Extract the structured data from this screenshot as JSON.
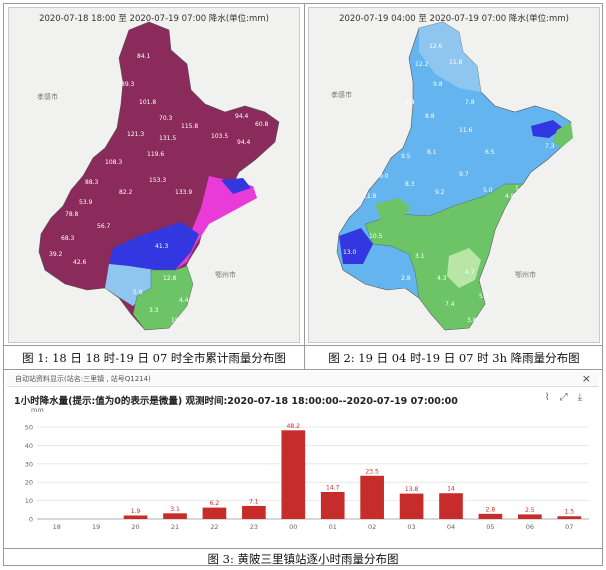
{
  "map1": {
    "header": "2020-07-18 18:00 至 2020-07-19 07:00 降水(单位:mm)",
    "city_label": "孝感市",
    "city_label2": "鄂州市",
    "labels": [
      "84.1",
      "89.3",
      "101.8",
      "70.3",
      "121.3",
      "115.8",
      "103.5",
      "94.4",
      "108.3",
      "119.6",
      "131.5",
      "88.3",
      "82.2",
      "153.3",
      "133.9",
      "78.8",
      "56.7",
      "41.3",
      "39.2",
      "42.6",
      "12.8",
      "5.6",
      "3.3",
      "4.4",
      "15.0",
      "94.4",
      "60.8",
      "68.3",
      "53.9"
    ]
  },
  "map2": {
    "header": "2020-07-19 04:00 至 2020-07-19 07:00 降水(单位:mm)",
    "city_label": "孝感市",
    "city_label2": "鄂州市",
    "labels": [
      "12.6",
      "12.2",
      "11.8",
      "9.8",
      "9.4",
      "7.8",
      "8.8",
      "11.6",
      "9.5",
      "8.1",
      "9.0",
      "7.3",
      "11.8",
      "8.3",
      "6.5",
      "9.7",
      "9.2",
      "5.0",
      "4.8",
      "13.0",
      "10.5",
      "3.1",
      "4.3",
      "4.7",
      "5.3",
      "7.4",
      "3.8",
      "2.8",
      "1.1"
    ]
  },
  "captions": {
    "fig1": "图 1:   18 日 18 时-19 日 07 时全市累计雨量分布图",
    "fig2": "图 2:   19 日 04 时-19 日 07 时 3h 降雨量分布图",
    "fig3": "图 3:   黄陂三里镇站逐小时雨量分布图"
  },
  "window": {
    "title": "自动站资料显示(站名:三里镇 , 站号Q1214)",
    "close_label": "×",
    "tool_icons": [
      "line-chart-icon",
      "expand-icon",
      "download-icon"
    ]
  },
  "chart_title": "1小时降水量(提示:值为0的表示是微量)   观测时间:2020-07-18 18:00:00--2020-07-19 07:00:00",
  "chart_data": {
    "type": "bar",
    "ylabel": "mm",
    "ylim": [
      0,
      50
    ],
    "yticks": [
      0,
      10,
      20,
      30,
      40,
      50
    ],
    "grid": true,
    "categories": [
      "18",
      "19",
      "20",
      "21",
      "22",
      "23",
      "00",
      "01",
      "02",
      "03",
      "04",
      "05",
      "06",
      "07"
    ],
    "values": [
      0,
      0,
      1.9,
      3.1,
      6.2,
      7.1,
      48.2,
      14.7,
      23.5,
      13.8,
      14,
      2.8,
      2.5,
      1.5
    ],
    "data_labels": [
      null,
      null,
      "1.9",
      "3.1",
      "6.2",
      "7.1",
      "48.2",
      "14.7",
      "23.5",
      "13.8",
      "14",
      "2.8",
      "2.5",
      "1.5"
    ],
    "bar_color": "#c62d2a",
    "label_color": "#c62d2a"
  },
  "colors": {
    "heavy_rain": "#8b2b5b",
    "storm": "#3337e0",
    "magenta": "#e83bd8",
    "moderate": "#64b4f0",
    "light_blue": "#8ec6ef",
    "green": "#6cc466",
    "pale_green": "#b9e6a6"
  }
}
